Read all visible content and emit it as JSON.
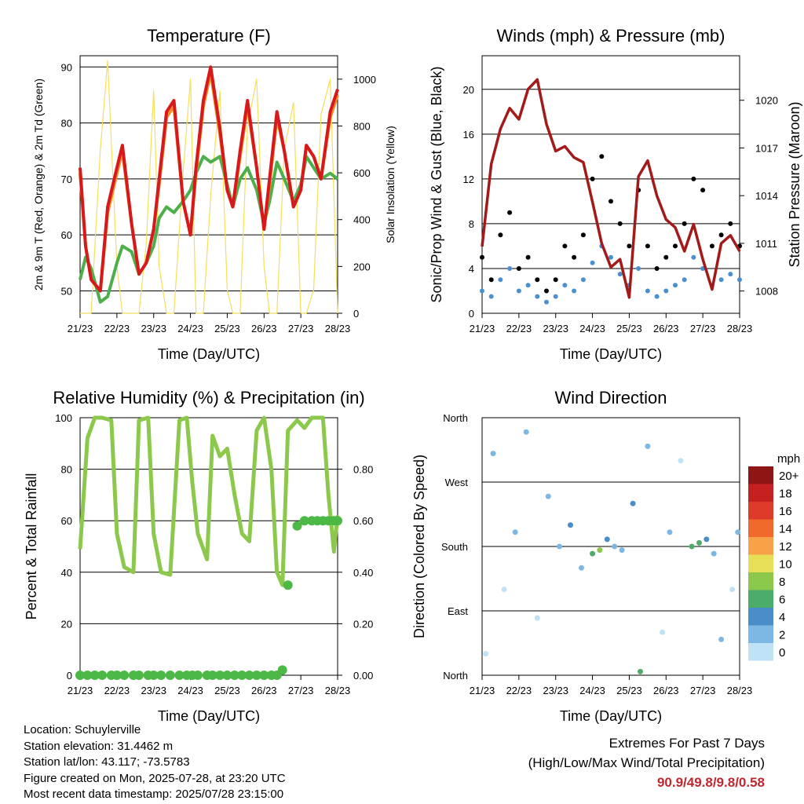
{
  "chart_data": [
    {
      "type": "line",
      "title": "Temperature (F)",
      "xlabel": "Time (Day/UTC)",
      "ylabel": "2m & 9m T (Red, Orange) & 2m Td (Green)",
      "y2label": "Solar Insolation (Yellow)",
      "x_ticks": [
        "21/23",
        "22/23",
        "23/23",
        "24/23",
        "25/23",
        "26/23",
        "27/23",
        "28/23"
      ],
      "ylim": [
        46,
        92
      ],
      "y_ticks": [
        50,
        60,
        70,
        80,
        90
      ],
      "y2lim": [
        0,
        1100
      ],
      "y2_ticks": [
        0,
        200,
        400,
        600,
        800,
        1000
      ],
      "x": [
        0,
        0.15,
        0.3,
        0.55,
        0.75,
        1.0,
        1.15,
        1.4,
        1.6,
        1.8,
        2.0,
        2.15,
        2.35,
        2.55,
        2.8,
        3.0,
        3.15,
        3.35,
        3.55,
        3.8,
        4.0,
        4.15,
        4.35,
        4.55,
        4.8,
        5.0,
        5.15,
        5.35,
        5.55,
        5.8,
        6.0,
        6.15,
        6.35,
        6.55,
        6.8,
        7.0
      ],
      "series": [
        {
          "color": "#d7191c",
          "values": [
            72,
            58,
            52,
            50,
            65,
            72,
            76,
            62,
            53,
            55,
            61,
            70,
            82,
            84,
            66,
            60,
            72,
            84,
            90,
            79,
            68,
            65,
            75,
            84,
            72,
            61,
            70,
            82,
            75,
            65,
            68,
            76,
            74,
            70,
            82,
            86
          ]
        },
        {
          "color": "#f08c2a",
          "values": [
            71,
            58,
            52,
            50,
            64,
            71,
            75,
            62,
            53,
            55,
            61,
            69,
            81,
            83,
            66,
            60,
            71,
            83,
            89,
            78,
            68,
            65,
            74,
            83,
            72,
            61,
            69,
            81,
            75,
            65,
            68,
            76,
            74,
            70,
            81,
            85
          ]
        },
        {
          "color": "#4daf4a",
          "values": [
            52,
            56,
            54,
            48,
            49,
            55,
            58,
            57,
            53,
            55,
            58,
            63,
            65,
            64,
            66,
            68,
            71,
            74,
            73,
            74,
            69,
            65,
            70,
            72,
            68,
            62,
            66,
            73,
            70,
            66,
            69,
            74,
            72,
            70,
            71,
            70
          ]
        },
        {
          "color": "#f5de5b",
          "values": [
            0,
            0,
            0,
            700,
            1080,
            200,
            0,
            0,
            0,
            300,
            950,
            200,
            0,
            0,
            600,
            1000,
            0,
            0,
            500,
            950,
            100,
            0,
            0,
            800,
            1000,
            200,
            0,
            0,
            700,
            900,
            0,
            0,
            100,
            850,
            1000,
            0
          ]
        }
      ]
    },
    {
      "type": "scatter",
      "title": "Winds (mph) & Pressure (mb)",
      "xlabel": "Time (Day/UTC)",
      "ylabel": "Sonic/Prop Wind & Gust (Blue, Black)",
      "y2label": "Station Pressure (Maroon)",
      "x_ticks": [
        "21/23",
        "22/23",
        "23/23",
        "24/23",
        "25/23",
        "26/23",
        "27/23",
        "28/23"
      ],
      "ylim": [
        0,
        23
      ],
      "y_ticks": [
        0,
        4,
        8,
        12,
        16,
        20
      ],
      "y2lim": [
        1006.6,
        1022.8
      ],
      "y2_ticks": [
        "1008",
        "1011",
        "1014",
        "1017",
        "1020"
      ],
      "x": [
        0,
        0.25,
        0.5,
        0.75,
        1.0,
        1.25,
        1.5,
        1.75,
        2.0,
        2.25,
        2.5,
        2.75,
        3.0,
        3.25,
        3.5,
        3.75,
        4.0,
        4.25,
        4.5,
        4.75,
        5.0,
        5.25,
        5.5,
        5.75,
        6.0,
        6.25,
        6.5,
        6.75,
        7.0
      ],
      "series": [
        {
          "color": "#4a90d0",
          "values": [
            2,
            1.5,
            3,
            4,
            2,
            2.5,
            1.5,
            1,
            1.5,
            2.5,
            2,
            3,
            4.5,
            6,
            5,
            3.5,
            2.5,
            4,
            2,
            1.5,
            2,
            2.5,
            3,
            5,
            4,
            2.5,
            3,
            3.5,
            3
          ]
        },
        {
          "color": "#000000",
          "values": [
            5,
            3,
            7,
            9,
            4,
            5,
            3,
            2,
            3,
            6,
            5,
            7,
            12,
            14,
            10,
            8,
            6,
            11,
            6,
            4,
            5,
            6,
            8,
            12,
            11,
            6,
            7,
            8,
            6
          ]
        },
        {
          "color": "#a31a1a",
          "values": [
            1010.8,
            1016,
            1018.2,
            1019.5,
            1018.8,
            1020.7,
            1021.3,
            1018.5,
            1016.8,
            1017.1,
            1016.4,
            1016.1,
            1013.6,
            1011,
            1009.5,
            1010,
            1007.6,
            1015.2,
            1016.2,
            1014,
            1012.5,
            1012,
            1010.5,
            1012.2,
            1010,
            1008.1,
            1011,
            1011.5,
            1010.5
          ]
        }
      ]
    },
    {
      "type": "line",
      "title": "Relative Humidity (%) & Precipitation (in)",
      "xlabel": "Time (Day/UTC)",
      "ylabel": "Percent & Total Rainfall",
      "x_ticks": [
        "21/23",
        "22/23",
        "23/23",
        "24/23",
        "25/23",
        "26/23",
        "27/23",
        "28/23"
      ],
      "ylim": [
        0,
        100
      ],
      "y_ticks": [
        0,
        20,
        40,
        60,
        80,
        100
      ],
      "y2lim": [
        0,
        1.0
      ],
      "y2_ticks": [
        "0.00",
        "0.20",
        "0.40",
        "0.60",
        "0.80"
      ],
      "x": [
        0,
        0.2,
        0.4,
        0.6,
        0.85,
        1.0,
        1.2,
        1.45,
        1.6,
        1.85,
        2.0,
        2.2,
        2.45,
        2.7,
        2.9,
        3.05,
        3.2,
        3.45,
        3.6,
        3.8,
        4.0,
        4.2,
        4.4,
        4.6,
        4.8,
        5.0,
        5.2,
        5.35,
        5.5,
        5.65,
        5.9,
        6.1,
        6.3,
        6.45,
        6.6,
        6.75,
        6.9,
        7.0
      ],
      "series": [
        {
          "color": "#8cc84b",
          "values": [
            49,
            92,
            100,
            100,
            99,
            55,
            42,
            40,
            99,
            100,
            55,
            40,
            39,
            99,
            100,
            75,
            55,
            45,
            93,
            85,
            88,
            70,
            55,
            52,
            95,
            100,
            80,
            40,
            35,
            95,
            99,
            96,
            100,
            100,
            100,
            70,
            48,
            62
          ]
        },
        {
          "color": "#4cb846",
          "values": [
            0,
            0,
            0,
            0,
            0,
            0,
            0,
            0,
            0,
            0,
            0,
            0,
            0,
            0,
            0,
            0,
            0,
            0,
            0,
            0,
            0,
            0,
            0,
            0,
            0,
            0,
            0,
            0,
            0.02,
            0.35,
            0.58,
            0.6,
            0.6,
            0.6,
            0.6,
            0.6,
            0.6,
            0.6
          ]
        }
      ]
    },
    {
      "type": "scatter",
      "title": "Wind Direction",
      "xlabel": "Time (Day/UTC)",
      "ylabel": "Direction (Colored By Speed)",
      "x_ticks": [
        "21/23",
        "22/23",
        "23/23",
        "24/23",
        "25/23",
        "26/23",
        "27/23",
        "28/23"
      ],
      "ylim": [
        0,
        360
      ],
      "y_ticks": [
        "North",
        "East",
        "South",
        "West",
        "North"
      ],
      "legend": {
        "unit": "mph",
        "labels": [
          "20+",
          "18",
          "16",
          "14",
          "12",
          "10",
          "8",
          "6",
          "4",
          "2",
          "0"
        ],
        "colors": [
          "#8e1515",
          "#c62121",
          "#de3a2a",
          "#f06a2d",
          "#f7a148",
          "#e8df59",
          "#8cc84b",
          "#4cad6b",
          "#4a8ec9",
          "#7db8e4",
          "#bfe2f6"
        ]
      },
      "x": [
        0.1,
        0.3,
        0.6,
        0.9,
        1.2,
        1.5,
        1.8,
        2.1,
        2.4,
        2.7,
        3.0,
        3.2,
        3.4,
        3.6,
        3.8,
        4.1,
        4.3,
        4.5,
        4.9,
        5.1,
        5.4,
        5.7,
        5.9,
        6.1,
        6.3,
        6.5,
        6.8,
        6.95
      ],
      "series": [
        {
          "name": "direction",
          "values": [
            30,
            310,
            120,
            200,
            340,
            80,
            250,
            180,
            210,
            150,
            170,
            175,
            190,
            180,
            175,
            240,
            5,
            320,
            60,
            200,
            300,
            180,
            185,
            190,
            170,
            50,
            120,
            200
          ]
        },
        {
          "name": "speed",
          "values": [
            1,
            2,
            1,
            3,
            2,
            1,
            2,
            3,
            4,
            2,
            6,
            8,
            4,
            3,
            2,
            5,
            7,
            3,
            1,
            2,
            1,
            6,
            7,
            5,
            3,
            2,
            1,
            3
          ]
        }
      ]
    }
  ],
  "info": {
    "location": "Location: Schuylerville",
    "elevation": "Station elevation: 31.4462 m",
    "latlon": "Station lat/lon: 43.117; -73.5783",
    "created": "Figure created on Mon, 2025-07-28, at 23:20 UTC",
    "recent": "Most recent data timestamp: 2025/07/28 23:15:00"
  },
  "extremes": {
    "title": "Extremes For Past 7 Days",
    "subtitle": "(High/Low/Max Wind/Total Precipitation)",
    "values": "90.9/49.8/9.8/0.58"
  }
}
